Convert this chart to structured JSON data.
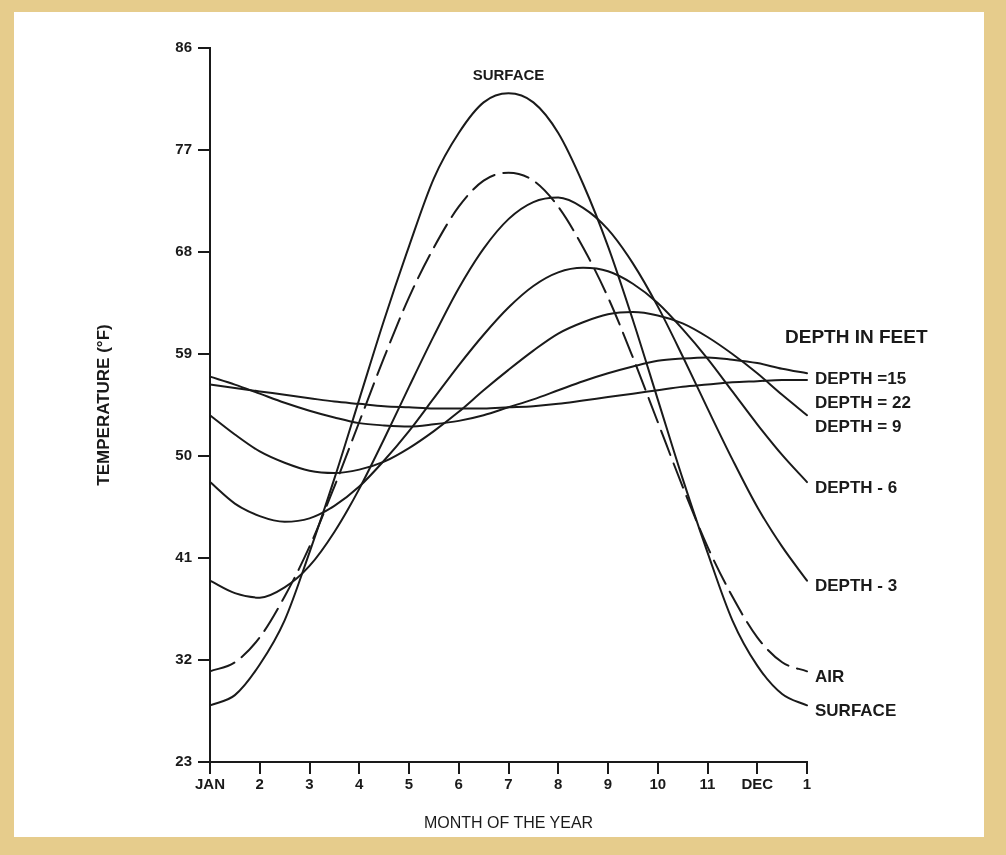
{
  "chart_data": {
    "type": "line",
    "xlabel": "MONTH OF THE YEAR",
    "ylabel": "TEMPERATURE (°F)",
    "legend_title": "DEPTH IN FEET",
    "categories": [
      "JAN",
      null,
      "2",
      null,
      "3",
      null,
      "4",
      null,
      "5",
      null,
      "6",
      null,
      "7",
      null,
      "8",
      null,
      "9",
      null,
      "10",
      null,
      "11",
      null,
      "DEC",
      null,
      "1"
    ],
    "ylim": [
      23,
      86
    ],
    "yticks": [
      23,
      32,
      41,
      50,
      59,
      68,
      77,
      86
    ],
    "grid": false,
    "series": [
      {
        "name": "DEPTH =15",
        "color": "#1a1a1a",
        "values": [
          57.0,
          56.3,
          55.5,
          54.7,
          54.0,
          53.4,
          52.9,
          52.7,
          52.6,
          52.8,
          53.1,
          53.6,
          54.3,
          55.0,
          55.8,
          56.6,
          57.3,
          57.9,
          58.4,
          58.6,
          58.7,
          58.5,
          58.2,
          57.7,
          57.3
        ]
      },
      {
        "name": "DEPTH = 22",
        "color": "#1a1a1a",
        "values": [
          56.3,
          56.0,
          55.7,
          55.4,
          55.1,
          54.8,
          54.6,
          54.4,
          54.3,
          54.2,
          54.2,
          54.2,
          54.3,
          54.4,
          54.6,
          54.9,
          55.2,
          55.5,
          55.8,
          56.1,
          56.3,
          56.5,
          56.6,
          56.7,
          56.7
        ]
      },
      {
        "name": "DEPTH = 9",
        "color": "#1a1a1a",
        "values": [
          53.6,
          51.9,
          50.4,
          49.4,
          48.7,
          48.5,
          48.8,
          49.5,
          50.7,
          52.2,
          53.9,
          55.8,
          57.6,
          59.3,
          60.8,
          61.8,
          62.5,
          62.7,
          62.4,
          61.7,
          60.5,
          59.0,
          57.3,
          55.4,
          53.6
        ]
      },
      {
        "name": "DEPTH - 6",
        "color": "#1a1a1a",
        "values": [
          47.7,
          45.8,
          44.7,
          44.2,
          44.5,
          45.6,
          47.3,
          49.6,
          52.2,
          55.1,
          58.0,
          60.7,
          63.1,
          65.0,
          66.2,
          66.6,
          66.3,
          65.2,
          63.5,
          61.2,
          58.6,
          55.7,
          52.8,
          50.1,
          47.7
        ]
      },
      {
        "name": "DEPTH - 3",
        "color": "#1a1a1a",
        "values": [
          39.0,
          37.9,
          37.5,
          38.4,
          40.3,
          43.3,
          47.1,
          51.5,
          56.1,
          60.6,
          64.8,
          68.3,
          70.9,
          72.4,
          72.8,
          71.9,
          70.0,
          67.0,
          63.2,
          58.8,
          54.2,
          49.7,
          45.5,
          42.0,
          39.0
        ]
      },
      {
        "name": "AIR",
        "color": "#1a1a1a",
        "line_style": "dashed",
        "values": [
          31.0,
          31.8,
          34.0,
          37.6,
          42.0,
          47.3,
          53.0,
          58.7,
          64.0,
          68.4,
          72.0,
          74.3,
          75.0,
          74.3,
          72.0,
          68.4,
          64.0,
          58.7,
          53.0,
          47.3,
          42.0,
          37.6,
          34.0,
          31.8,
          31.0
        ]
      },
      {
        "name": "SURFACE",
        "color": "#1a1a1a",
        "values": [
          28.0,
          28.9,
          31.6,
          35.5,
          41.5,
          48.0,
          55.0,
          62.0,
          68.5,
          74.5,
          78.5,
          81.2,
          82.0,
          81.2,
          78.5,
          74.0,
          68.5,
          62.0,
          55.0,
          48.0,
          41.5,
          35.5,
          31.5,
          29.0,
          28.0
        ]
      }
    ],
    "annotations": [
      {
        "text": "SURFACE",
        "x": "7",
        "y": 82
      }
    ]
  }
}
